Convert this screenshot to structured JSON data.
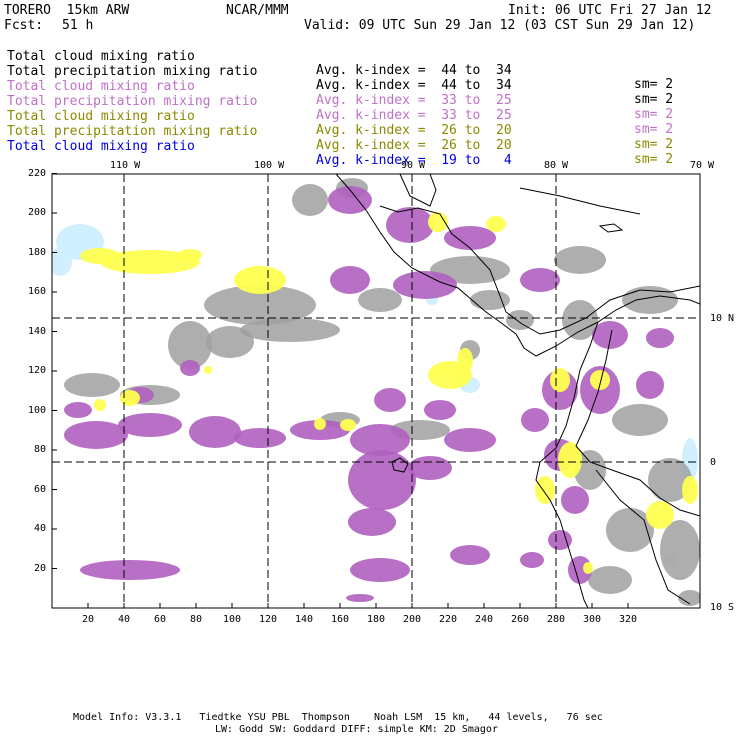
{
  "header": {
    "run_name": "TORERO  15km ARW",
    "center": "NCAR/MMM",
    "init": "Init: 06 UTC Fri 27 Jan 12",
    "fcst_label": "Fcst:",
    "fcst_value": "51 h",
    "valid": "Valid: 09 UTC Sun 29 Jan 12 (03 CST Sun 29 Jan 12)"
  },
  "fields": [
    {
      "name": "Total cloud mixing ratio",
      "index": "Avg. k-index =  44 to  34",
      "sm": "sm= 2",
      "color": "#000000"
    },
    {
      "name": "Total precipitation mixing ratio",
      "index": "Avg. k-index =  44 to  34",
      "sm": "sm= 2",
      "color": "#000000"
    },
    {
      "name": "Total cloud mixing ratio",
      "index": "Avg. k-index =  33 to  25",
      "sm": "sm= 2",
      "color": "#c070c8"
    },
    {
      "name": "Total precipitation mixing ratio",
      "index": "Avg. k-index =  33 to  25",
      "sm": "sm= 2",
      "color": "#c070c8"
    },
    {
      "name": "Total cloud mixing ratio",
      "index": "Avg. k-index =  26 to  20",
      "sm": "sm= 2",
      "color": "#8a8a00"
    },
    {
      "name": "Total precipitation mixing ratio",
      "index": "Avg. k-index =  26 to  20",
      "sm": "sm= 2",
      "color": "#8a8a00"
    },
    {
      "name": "Total cloud mixing ratio",
      "index": "Avg. k-index =  19 to   4",
      "sm": "",
      "color": "#0000e0"
    }
  ],
  "map": {
    "lon_labels": [
      "110 W",
      "100 W",
      "90 W",
      "80 W",
      "70 W"
    ],
    "lat_labels": [
      "10 N",
      "0",
      "10 S"
    ],
    "x_ticks": [
      "20",
      "40",
      "60",
      "80",
      "100",
      "120",
      "140",
      "160",
      "180",
      "200",
      "220",
      "240",
      "260",
      "280",
      "300",
      "320"
    ],
    "y_ticks": [
      "220",
      "200",
      "180",
      "160",
      "140",
      "120",
      "100",
      "80",
      "60",
      "40",
      "20"
    ],
    "colors": {
      "gray": "#a0a0a0",
      "purple": "#b060c0",
      "yellow": "#ffff50",
      "lightblue": "#d0f0ff",
      "coast": "#000000"
    }
  },
  "footer": {
    "line1": "Model Info: V3.3.1   Tiedtke YSU PBL  Thompson    Noah LSM  15 km,   44 levels,   76 sec",
    "line2": "LW: Godd SW: Goddard DIFF: simple KM: 2D Smagor"
  }
}
